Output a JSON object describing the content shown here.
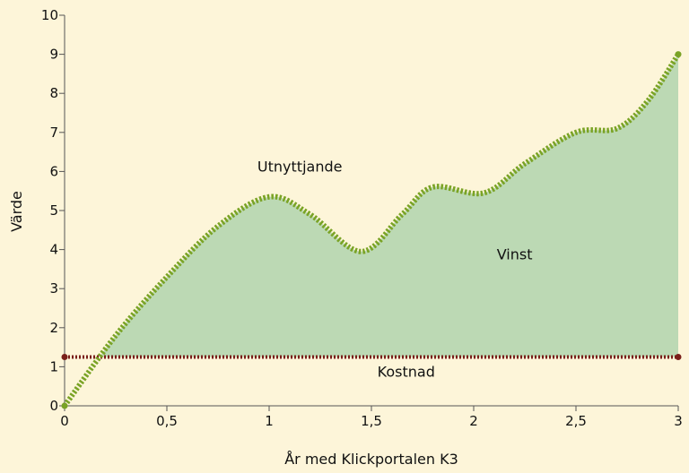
{
  "chart_data": {
    "type": "area",
    "xlabel": "År med Klickportalen K3",
    "ylabel": "Värde",
    "xlim": [
      0,
      3
    ],
    "ylim": [
      0,
      10
    ],
    "x_ticks": [
      "0",
      "0,5",
      "1",
      "1,5",
      "2",
      "2,5",
      "3"
    ],
    "y_ticks": [
      "0",
      "1",
      "2",
      "3",
      "4",
      "5",
      "6",
      "7",
      "8",
      "9",
      "10"
    ],
    "grid": false,
    "series": [
      {
        "name": "Utnyttjande",
        "color": "#7aa325",
        "style": "dotted-thick",
        "x": [
          0,
          0.25,
          0.5,
          0.75,
          1.0,
          1.2,
          1.45,
          1.65,
          1.8,
          2.05,
          2.25,
          2.5,
          2.7,
          2.85,
          3.0
        ],
        "y": [
          0,
          1.8,
          3.3,
          4.6,
          5.35,
          4.9,
          3.95,
          4.9,
          5.6,
          5.45,
          6.2,
          7.0,
          7.1,
          7.8,
          9.0
        ]
      },
      {
        "name": "Kostnad",
        "color": "#7a1f1a",
        "style": "dotted",
        "x": [
          0,
          3
        ],
        "y": [
          1.25,
          1.25
        ]
      }
    ],
    "fill": {
      "between": [
        "Utnyttjande",
        "Kostnad"
      ],
      "color": "#bcd9b4"
    },
    "annotations": [
      {
        "text": "Utnyttjande",
        "x": 1.15,
        "y": 6.0
      },
      {
        "text": "Vinst",
        "x": 2.2,
        "y": 3.75
      },
      {
        "text": "Kostnad",
        "x": 1.67,
        "y": 0.75
      }
    ]
  }
}
